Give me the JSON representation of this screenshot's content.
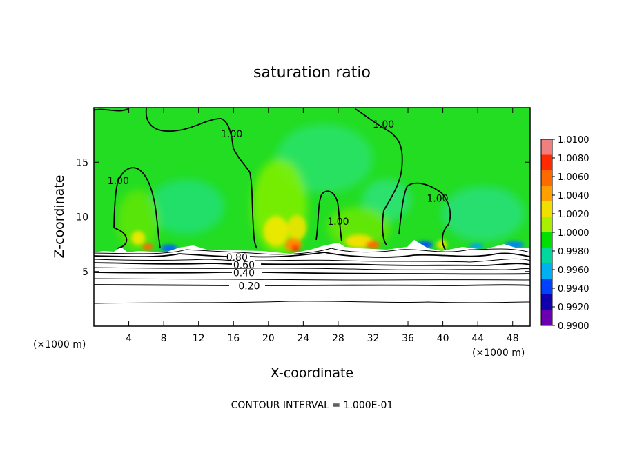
{
  "chart_data": {
    "type": "heatmap",
    "title": "saturation ratio",
    "xlabel": "X-coordinate",
    "ylabel": "Z-coordinate",
    "x_units": "(×1000 m)",
    "z_units": "(×1000 m)",
    "xlim": [
      0,
      50
    ],
    "ylim": [
      0,
      20
    ],
    "x_ticks": [
      4,
      8,
      12,
      16,
      20,
      24,
      28,
      32,
      36,
      40,
      44,
      48
    ],
    "y_ticks": [
      5,
      10,
      15
    ],
    "footer": "CONTOUR INTERVAL = 1.000E-01",
    "colorbar": {
      "ticks": [
        "1.0100",
        "1.0080",
        "1.0060",
        "1.0040",
        "1.0020",
        "1.0000",
        "0.9980",
        "0.9960",
        "0.9940",
        "0.9920",
        "0.9900"
      ],
      "colors": [
        "#f08080",
        "#ff2a00",
        "#ff6a00",
        "#ffa000",
        "#f0e000",
        "#a8f000",
        "#00e000",
        "#00d8a0",
        "#00b0f0",
        "#0040ff",
        "#1000b0",
        "#6a00b0"
      ]
    },
    "background_color": "#22dd22",
    "contour_labels": [
      {
        "text": "1.00",
        "x": 2.8,
        "z": 13.3
      },
      {
        "text": "1.00",
        "x": 15.8,
        "z": 17.6
      },
      {
        "text": "1.00",
        "x": 33.2,
        "z": 18.5
      },
      {
        "text": "1.00",
        "x": 39.4,
        "z": 11.7
      },
      {
        "text": "1.00",
        "x": 28.0,
        "z": 9.6
      },
      {
        "text": "0.80",
        "x": 16.4,
        "z": 6.3
      },
      {
        "text": "0.60",
        "x": 17.2,
        "z": 5.6
      },
      {
        "text": "0.40",
        "x": 17.2,
        "z": 4.9
      },
      {
        "text": "0.20",
        "x": 17.8,
        "z": 3.7
      }
    ],
    "contour_levels_below_cloud": [
      0.8,
      0.7,
      0.6,
      0.5,
      0.4,
      0.3,
      0.2,
      0.1
    ]
  }
}
